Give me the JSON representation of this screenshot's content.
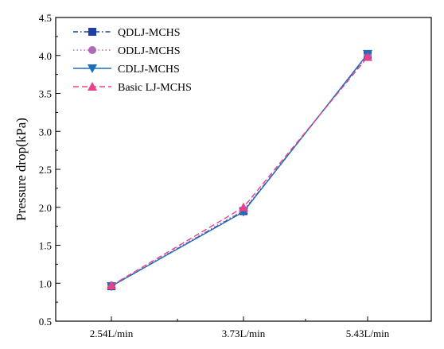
{
  "chart_data": {
    "type": "line",
    "categories": [
      "2.54L/min",
      "3.73L/min",
      "5.43L/min"
    ],
    "ylabel": "Pressure drop(kPa)",
    "xlabel": "",
    "ylim": [
      0.5,
      4.5
    ],
    "yticks": [
      "0.5",
      "1.0",
      "1.5",
      "2.0",
      "2.5",
      "3.0",
      "3.5",
      "4.0",
      "4.5"
    ],
    "grid": false,
    "legend_position": "top-left",
    "series": [
      {
        "name": "QDLJ-MCHS",
        "values": [
          0.96,
          1.95,
          4.01
        ],
        "color": "#1f3fa8",
        "marker": "square",
        "dash": "dash-dot"
      },
      {
        "name": "ODLJ-MCHS",
        "values": [
          0.97,
          1.96,
          4.0
        ],
        "color": "#b06ab3",
        "marker": "circle",
        "dash": "dot"
      },
      {
        "name": "CDLJ-MCHS",
        "values": [
          0.96,
          1.94,
          4.02
        ],
        "color": "#1c6eb8",
        "marker": "triangle-down",
        "dash": "solid"
      },
      {
        "name": "Basic LJ-MCHS",
        "values": [
          0.97,
          2.0,
          3.98
        ],
        "color": "#e8408a",
        "marker": "triangle-up",
        "dash": "dash"
      }
    ]
  }
}
